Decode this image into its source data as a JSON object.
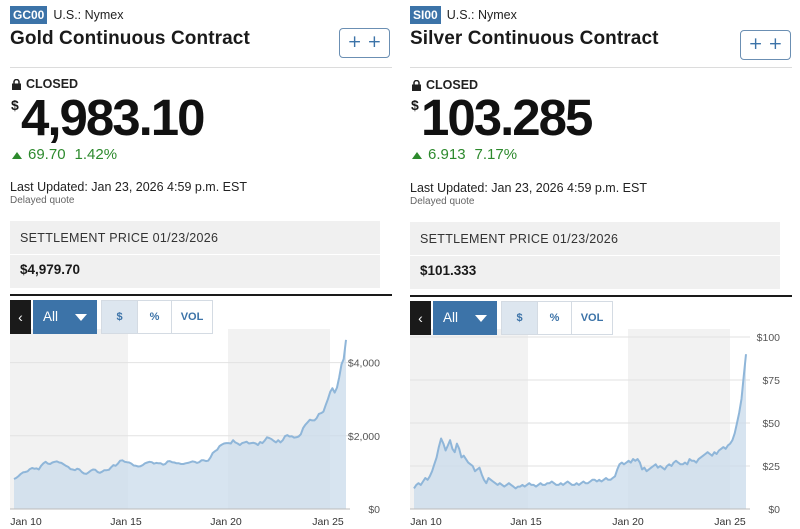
{
  "panels": [
    {
      "ticker": "GC00",
      "exchange": "U.S.: Nymex",
      "name": "Gold Continuous Contract",
      "add_label": "+ +",
      "status": "CLOSED",
      "currency": "$",
      "price": "4,983.10",
      "change": "69.70",
      "change_pct": "1.42%",
      "last_updated": "Last Updated: Jan 23, 2026 4:59 p.m. EST",
      "delayed": "Delayed quote",
      "settlement_label": "SETTLEMENT PRICE 01/23/2026",
      "settlement_value": "$4,979.70",
      "chart_controls": {
        "back": "‹",
        "range": "All",
        "toggles": [
          "$",
          "%",
          "VOL"
        ]
      },
      "colors": {
        "accent": "#3c73a8",
        "up": "#2d8a2d",
        "area": "#c9dbeb",
        "line": "#8fb6d9"
      },
      "chart_data": {
        "type": "area",
        "x_ticks": [
          "Jan 10",
          "Jan 15",
          "Jan 20",
          "Jan 25"
        ],
        "y_ticks": [
          "$4,000",
          "$2,000",
          "$0"
        ],
        "ylim": [
          0,
          4700
        ],
        "y_tick_values": [
          4000,
          2000,
          0
        ],
        "values": [
          820,
          850,
          900,
          960,
          1000,
          1010,
          1030,
          1090,
          1120,
          1100,
          1110,
          1080,
          1180,
          1250,
          1290,
          1240,
          1230,
          1270,
          1290,
          1300,
          1270,
          1260,
          1220,
          1180,
          1150,
          1090,
          1080,
          1060,
          1100,
          1080,
          1010,
          970,
          960,
          1000,
          1050,
          1080,
          1070,
          1010,
          990,
          1020,
          1060,
          1060,
          1070,
          1140,
          1200,
          1180,
          1240,
          1320,
          1330,
          1290,
          1280,
          1270,
          1240,
          1190,
          1180,
          1160,
          1170,
          1200,
          1250,
          1270,
          1290,
          1280,
          1240,
          1260,
          1250,
          1250,
          1210,
          1230,
          1300,
          1310,
          1280,
          1270,
          1250,
          1250,
          1230,
          1230,
          1250,
          1260,
          1280,
          1300,
          1290,
          1260,
          1280,
          1330,
          1330,
          1310,
          1320,
          1410,
          1530,
          1580,
          1620,
          1720,
          1760,
          1790,
          1800,
          1800,
          1790,
          1880,
          1820,
          1790,
          1750,
          1800,
          1820,
          1840,
          1790,
          1800,
          1810,
          1790,
          1750,
          1830,
          1800,
          1870,
          1960,
          1940,
          1910,
          1860,
          1820,
          1880,
          1820,
          1880,
          1990,
          2020,
          1980,
          1990,
          1950,
          1960,
          1980,
          2040,
          2210,
          2300,
          2370,
          2440,
          2420,
          2420,
          2480,
          2600,
          2620,
          2660,
          2840,
          3000,
          3200,
          3300,
          3180,
          3320,
          3600,
          3950,
          4100,
          4620
        ]
      }
    },
    {
      "ticker": "SI00",
      "exchange": "U.S.: Nymex",
      "name": "Silver Continuous Contract",
      "add_label": "+ +",
      "status": "CLOSED",
      "currency": "$",
      "price": "103.285",
      "change": "6.913",
      "change_pct": "7.17%",
      "last_updated": "Last Updated: Jan 23, 2026 4:59 p.m. EST",
      "delayed": "Delayed quote",
      "settlement_label": "SETTLEMENT PRICE 01/23/2026",
      "settlement_value": "$101.333",
      "chart_controls": {
        "back": "‹",
        "range": "All",
        "toggles": [
          "$",
          "%",
          "VOL"
        ]
      },
      "colors": {
        "accent": "#3c73a8",
        "up": "#2d8a2d",
        "area": "#c9dbeb",
        "line": "#8fb6d9"
      },
      "chart_data": {
        "type": "area",
        "x_ticks": [
          "Jan 10",
          "Jan 15",
          "Jan 20",
          "Jan 25"
        ],
        "y_ticks": [
          "$100",
          "$75",
          "$50",
          "$25",
          "$0"
        ],
        "ylim": [
          0,
          100
        ],
        "y_tick_values": [
          100,
          75,
          50,
          25,
          0
        ],
        "values": [
          12,
          14,
          15,
          14,
          16,
          18,
          17,
          19,
          22,
          26,
          30,
          36,
          41,
          38,
          34,
          37,
          40,
          35,
          33,
          38,
          35,
          30,
          31,
          29,
          27,
          26,
          25,
          22,
          23,
          24,
          20,
          17,
          15,
          18,
          17,
          16,
          15,
          14,
          15,
          14,
          13,
          14,
          15,
          14,
          13,
          12,
          13,
          13,
          14,
          13,
          14,
          15,
          14,
          14,
          13,
          14,
          15,
          14,
          14,
          15,
          15,
          16,
          15,
          14,
          14,
          15,
          14,
          15,
          16,
          15,
          14,
          14,
          15,
          14,
          15,
          16,
          15,
          15,
          16,
          17,
          17,
          16,
          17,
          16,
          17,
          18,
          17,
          17,
          18,
          19,
          23,
          26,
          27,
          26,
          27,
          28,
          27,
          29,
          28,
          29,
          27,
          23,
          24,
          22,
          23,
          24,
          25,
          26,
          24,
          25,
          24,
          23,
          25,
          26,
          25,
          27,
          28,
          27,
          26,
          26,
          27,
          26,
          29,
          28,
          28,
          27,
          29,
          30,
          31,
          32,
          33,
          32,
          31,
          33,
          32,
          34,
          35,
          36,
          35,
          37,
          38,
          40,
          44,
          50,
          56,
          64,
          77,
          90
        ]
      }
    }
  ]
}
